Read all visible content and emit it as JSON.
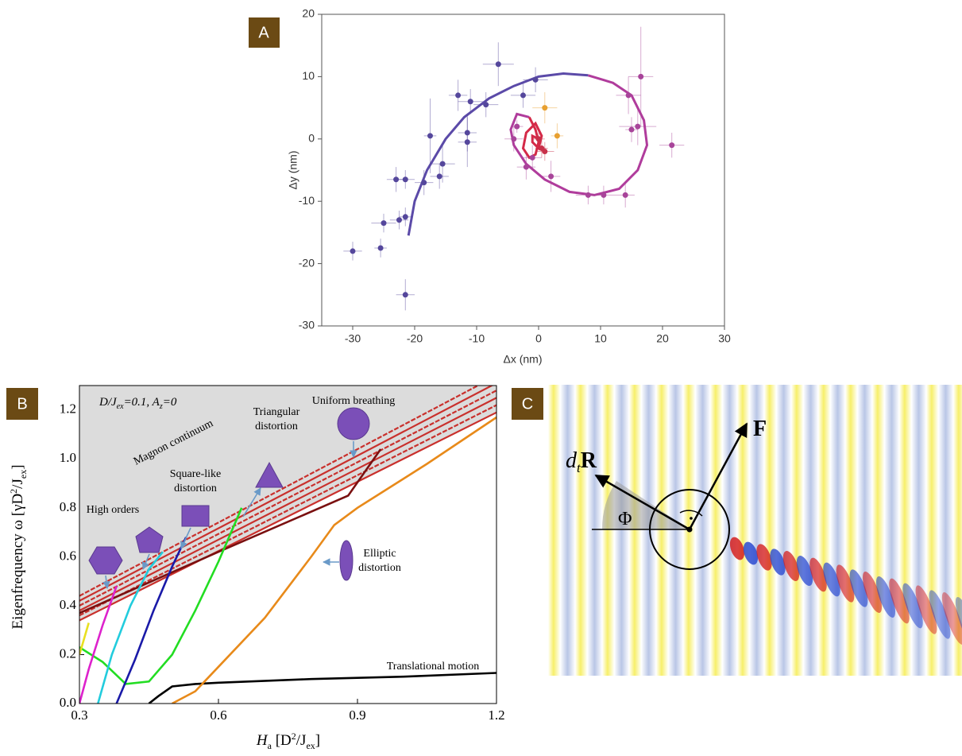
{
  "chart_data": [
    {
      "type": "scatter",
      "panel_label": "A",
      "xlabel": "Δx (nm)",
      "ylabel": "Δy (nm)",
      "xlim": [
        -35,
        30
      ],
      "ylim": [
        -30,
        20
      ],
      "xticks": [
        -30,
        -20,
        -10,
        0,
        10,
        20,
        30
      ],
      "yticks": [
        -30,
        -20,
        -10,
        0,
        10,
        20
      ],
      "series": [
        {
          "color": "#55479c",
          "x": [
            -30,
            -25.5,
            -25,
            -22.5,
            -21.5,
            -21.5,
            -23,
            -21.5,
            -18.5,
            -17.5,
            -16,
            -15.5,
            -13,
            -11.5,
            -11.5,
            -11,
            -8.5,
            -6.5,
            -2.5,
            -0.5
          ],
          "y": [
            -18,
            -17.5,
            -13.5,
            -13,
            -12.5,
            -25,
            -6.5,
            -6.5,
            -7,
            0.5,
            -6,
            -4,
            7,
            1,
            -0.5,
            6,
            5.5,
            12,
            7,
            9.5
          ],
          "xerr": [
            1.5,
            1,
            2,
            1.5,
            1,
            1.5,
            1.5,
            1.5,
            1.5,
            1,
            1.5,
            2,
            1.5,
            1.5,
            1.5,
            2,
            2,
            2.5,
            2,
            2
          ],
          "yerr": [
            1.5,
            1.5,
            1.5,
            1.5,
            1.5,
            2.5,
            2,
            1.5,
            2,
            6,
            2,
            3,
            2.5,
            3,
            4,
            2,
            2,
            3.5,
            2,
            2
          ]
        },
        {
          "color": "#a8449a",
          "x": [
            -4,
            -3.5,
            -2,
            -1,
            2,
            8,
            10.5,
            14,
            14.5,
            15,
            16,
            16.5,
            21.5
          ],
          "y": [
            0,
            2,
            -4.5,
            -3,
            -6,
            -9,
            -9,
            -9,
            7,
            1.5,
            2,
            10,
            -1
          ],
          "xerr": [
            1.5,
            1,
            1.5,
            1.5,
            1.5,
            2,
            2,
            1.5,
            2,
            1,
            3,
            2,
            2
          ],
          "yerr": [
            2,
            1,
            2,
            2,
            2.5,
            1.5,
            1.5,
            2,
            3,
            2,
            3,
            8,
            2
          ]
        },
        {
          "color": "#c8304a",
          "x": [
            0.5,
            1,
            0
          ],
          "y": [
            -1.5,
            -2,
            0
          ],
          "xerr": [
            1,
            1.5,
            1
          ],
          "yerr": [
            1.5,
            1.5,
            1
          ]
        },
        {
          "color": "#e8a030",
          "x": [
            1,
            3
          ],
          "y": [
            5,
            0.5
          ],
          "xerr": [
            2,
            1
          ],
          "yerr": [
            2.5,
            2
          ]
        }
      ],
      "fits": [
        {
          "color": "#5b4aa8",
          "x": [
            -21,
            -20,
            -18,
            -15,
            -12,
            -8,
            -4,
            0,
            4,
            8
          ],
          "y": [
            -15.5,
            -10,
            -5,
            0,
            3.5,
            6.5,
            8.5,
            10,
            10.5,
            10.2
          ]
        },
        {
          "color": "#b03c9c",
          "x": [
            8,
            12,
            15,
            17,
            17.5,
            16,
            13,
            9,
            5,
            1,
            -2,
            -4,
            -4.5,
            -3.5,
            -1.5
          ],
          "y": [
            10.2,
            9,
            7,
            3,
            -1,
            -5,
            -8,
            -9,
            -8.5,
            -6.5,
            -4,
            -1,
            1.5,
            4,
            3.5
          ]
        },
        {
          "color": "#d42a48",
          "x": [
            -1.5,
            -0.5,
            0,
            -0.5,
            -1.5,
            -2.5,
            -2,
            -0.5,
            0.5,
            0,
            -1,
            -1,
            0
          ],
          "y": [
            3.5,
            1.5,
            -0.5,
            -2.5,
            -3,
            -1.5,
            1,
            2.5,
            0.5,
            -1.5,
            -0.5,
            0.5,
            0
          ]
        }
      ]
    },
    {
      "type": "line",
      "panel_label": "B",
      "xlabel": [
        "H",
        "a",
        " [D",
        "2",
        "/J",
        "ex",
        "]"
      ],
      "ylabel": [
        "Eigenfrequency ω [γD",
        "2",
        "/J",
        "ex",
        "]"
      ],
      "params": [
        "D/J",
        "ex",
        "=0.1, A",
        "z",
        "=0"
      ],
      "xlim": [
        0.3,
        1.2
      ],
      "ylim": [
        0,
        1.3
      ],
      "xticks": [
        0.3,
        0.6,
        0.9,
        1.2
      ],
      "yticks": [
        {
          "value": 0,
          "label": "0.0"
        },
        0.2,
        0.4,
        0.6,
        0.8,
        {
          "value": 1,
          "label": "1.0"
        },
        1.2
      ],
      "annotations": {
        "continuum": "Magnon continuum",
        "breathing": "Uniform breathing",
        "triangular": [
          "Triangular",
          "distortion"
        ],
        "square": [
          "Square-like",
          "distortion"
        ],
        "high": "High orders",
        "elliptic": [
          "Elliptic",
          "distortion"
        ],
        "translational": "Translational motion"
      },
      "continuum": {
        "color": "#c9302c",
        "shade": "#dcdcdc",
        "lines": [
          {
            "x": [
              0.3,
              1.2
            ],
            "y": [
              0.34,
              1.19
            ]
          },
          {
            "x": [
              0.3,
              1.2
            ],
            "y": [
              0.36,
              1.22
            ]
          },
          {
            "x": [
              0.3,
              1.2
            ],
            "y": [
              0.38,
              1.25
            ]
          },
          {
            "x": [
              0.3,
              1.2
            ],
            "y": [
              0.4,
              1.28
            ]
          },
          {
            "x": [
              0.3,
              1.2
            ],
            "y": [
              0.42,
              1.31
            ]
          },
          {
            "x": [
              0.3,
              1.2
            ],
            "y": [
              0.44,
              1.34
            ]
          }
        ]
      },
      "series": [
        {
          "color": "#7a1010",
          "x": [
            0.3,
            0.6,
            0.88,
            0.95
          ],
          "y": [
            0.37,
            0.62,
            0.85,
            1.04
          ]
        },
        {
          "color": "#000000",
          "x": [
            0.45,
            0.47,
            0.5,
            0.55,
            0.6,
            0.8,
            1.0,
            1.2
          ],
          "y": [
            0,
            0.03,
            0.07,
            0.08,
            0.085,
            0.1,
            0.11,
            0.125
          ]
        },
        {
          "color": "#e88a1a",
          "x": [
            0.5,
            0.55,
            0.6,
            0.7,
            0.8,
            0.85,
            0.9,
            0.95,
            1.05,
            1.2
          ],
          "y": [
            0,
            0.05,
            0.15,
            0.35,
            0.6,
            0.73,
            0.8,
            0.86,
            0.98,
            1.17
          ]
        },
        {
          "color": "#22dd22",
          "x": [
            0.3,
            0.35,
            0.4,
            0.45,
            0.5,
            0.55,
            0.6,
            0.65
          ],
          "y": [
            0.23,
            0.17,
            0.08,
            0.09,
            0.2,
            0.38,
            0.58,
            0.8
          ]
        },
        {
          "color": "#1a1aa8",
          "x": [
            0.38,
            0.42,
            0.46,
            0.5,
            0.53
          ],
          "y": [
            0,
            0.18,
            0.38,
            0.56,
            0.68
          ]
        },
        {
          "color": "#22ccdd",
          "x": [
            0.34,
            0.37,
            0.41,
            0.45,
            0.48
          ],
          "y": [
            0,
            0.2,
            0.4,
            0.55,
            0.62
          ]
        },
        {
          "color": "#dd22cc",
          "x": [
            0.3,
            0.32,
            0.35,
            0.38
          ],
          "y": [
            0,
            0.14,
            0.32,
            0.48
          ]
        },
        {
          "color": "#e8e020",
          "x": [
            0.3,
            0.32
          ],
          "y": [
            0.2,
            0.33
          ]
        }
      ]
    }
  ],
  "panel_c": {
    "label": "C",
    "force_label": "F",
    "velocity_label": [
      "d",
      "t",
      "R"
    ],
    "angle_label": "Φ"
  }
}
